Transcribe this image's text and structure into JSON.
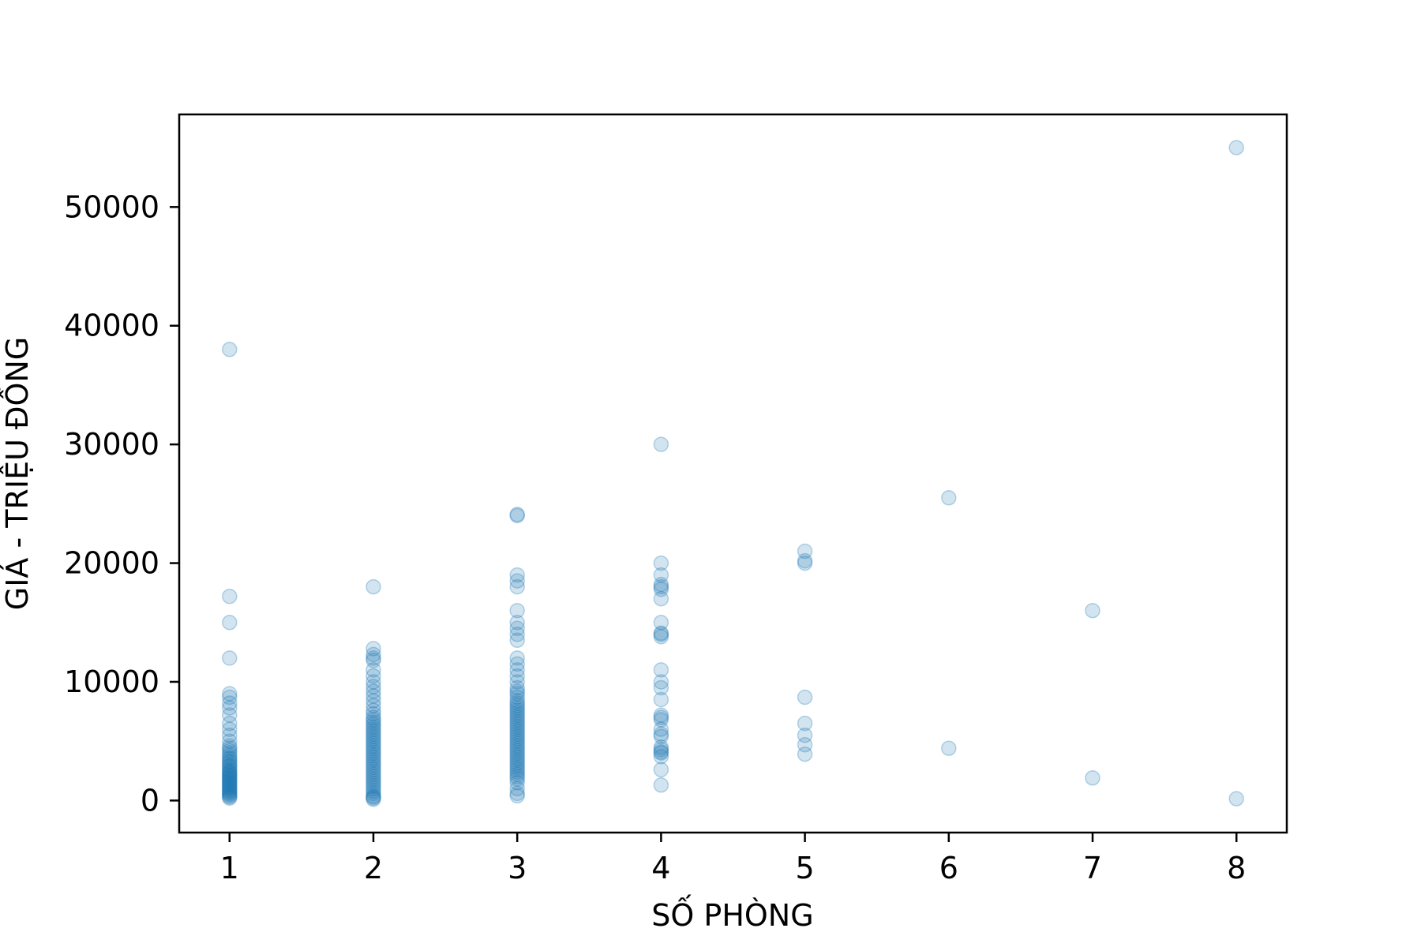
{
  "chart_data": {
    "type": "scatter",
    "title": "",
    "xlabel": "SỐ PHÒNG",
    "ylabel": "GIÁ - TRIỆU ĐỒNG",
    "xlim": [
      0.65,
      8.35
    ],
    "ylim": [
      -2700,
      57800
    ],
    "xticks": [
      "1",
      "2",
      "3",
      "4",
      "5",
      "6",
      "7",
      "8"
    ],
    "yticks": [
      "0",
      "10000",
      "20000",
      "30000",
      "40000",
      "50000"
    ],
    "grid": false,
    "legend": "none",
    "marker_color": "#1f77b4",
    "marker_opacity": 0.2,
    "series": [
      {
        "x": 1,
        "y": [
          38000,
          17200,
          15000,
          12000,
          9000,
          8700,
          8200,
          7800,
          7200,
          6500,
          6000,
          5500,
          5000,
          4600,
          4400,
          4200,
          4000,
          3800,
          3600,
          3500,
          3300,
          3200,
          3000,
          2900,
          2800,
          2600,
          2500,
          2400,
          2300,
          2200,
          2100,
          2000,
          1900,
          1800,
          1700,
          1600,
          1500,
          1400,
          1300,
          1200,
          1100,
          1000,
          900,
          800,
          700,
          600,
          500,
          400,
          300,
          200
        ]
      },
      {
        "x": 2,
        "y": [
          18000,
          12800,
          12300,
          12000,
          11800,
          11000,
          10500,
          10000,
          9600,
          9200,
          8800,
          8400,
          8000,
          7600,
          7300,
          7000,
          6800,
          6600,
          6400,
          6200,
          6000,
          5800,
          5600,
          5400,
          5200,
          5000,
          4800,
          4600,
          4400,
          4200,
          4000,
          3800,
          3600,
          3400,
          3200,
          3000,
          2800,
          2600,
          2400,
          2200,
          2000,
          1800,
          1600,
          1400,
          1200,
          1000,
          800,
          600,
          400,
          300,
          200,
          100
        ]
      },
      {
        "x": 3,
        "y": [
          24100,
          24000,
          19000,
          18500,
          18000,
          16000,
          15000,
          14500,
          14000,
          13500,
          12000,
          11500,
          11000,
          10500,
          10000,
          9500,
          9200,
          9000,
          8700,
          8400,
          8200,
          8000,
          7800,
          7600,
          7400,
          7200,
          7000,
          6800,
          6600,
          6400,
          6200,
          6000,
          5800,
          5600,
          5400,
          5200,
          5000,
          4800,
          4600,
          4400,
          4200,
          4000,
          3800,
          3600,
          3400,
          3200,
          3000,
          2800,
          2600,
          2400,
          2200,
          2000,
          1800,
          1500,
          1000,
          600,
          400
        ]
      },
      {
        "x": 4,
        "y": [
          30000,
          20000,
          19000,
          18200,
          18000,
          17800,
          17000,
          15000,
          14100,
          14000,
          13800,
          11000,
          10000,
          9500,
          8500,
          7200,
          7000,
          6800,
          6000,
          5600,
          5400,
          4500,
          4300,
          4100,
          4000,
          3700,
          2600,
          1300
        ]
      },
      {
        "x": 5,
        "y": [
          21000,
          20200,
          20000,
          8700,
          6500,
          5500,
          4700,
          3900
        ]
      },
      {
        "x": 6,
        "y": [
          25500,
          4400
        ]
      },
      {
        "x": 7,
        "y": [
          16000,
          1900
        ]
      },
      {
        "x": 8,
        "y": [
          55000,
          150
        ]
      }
    ]
  }
}
